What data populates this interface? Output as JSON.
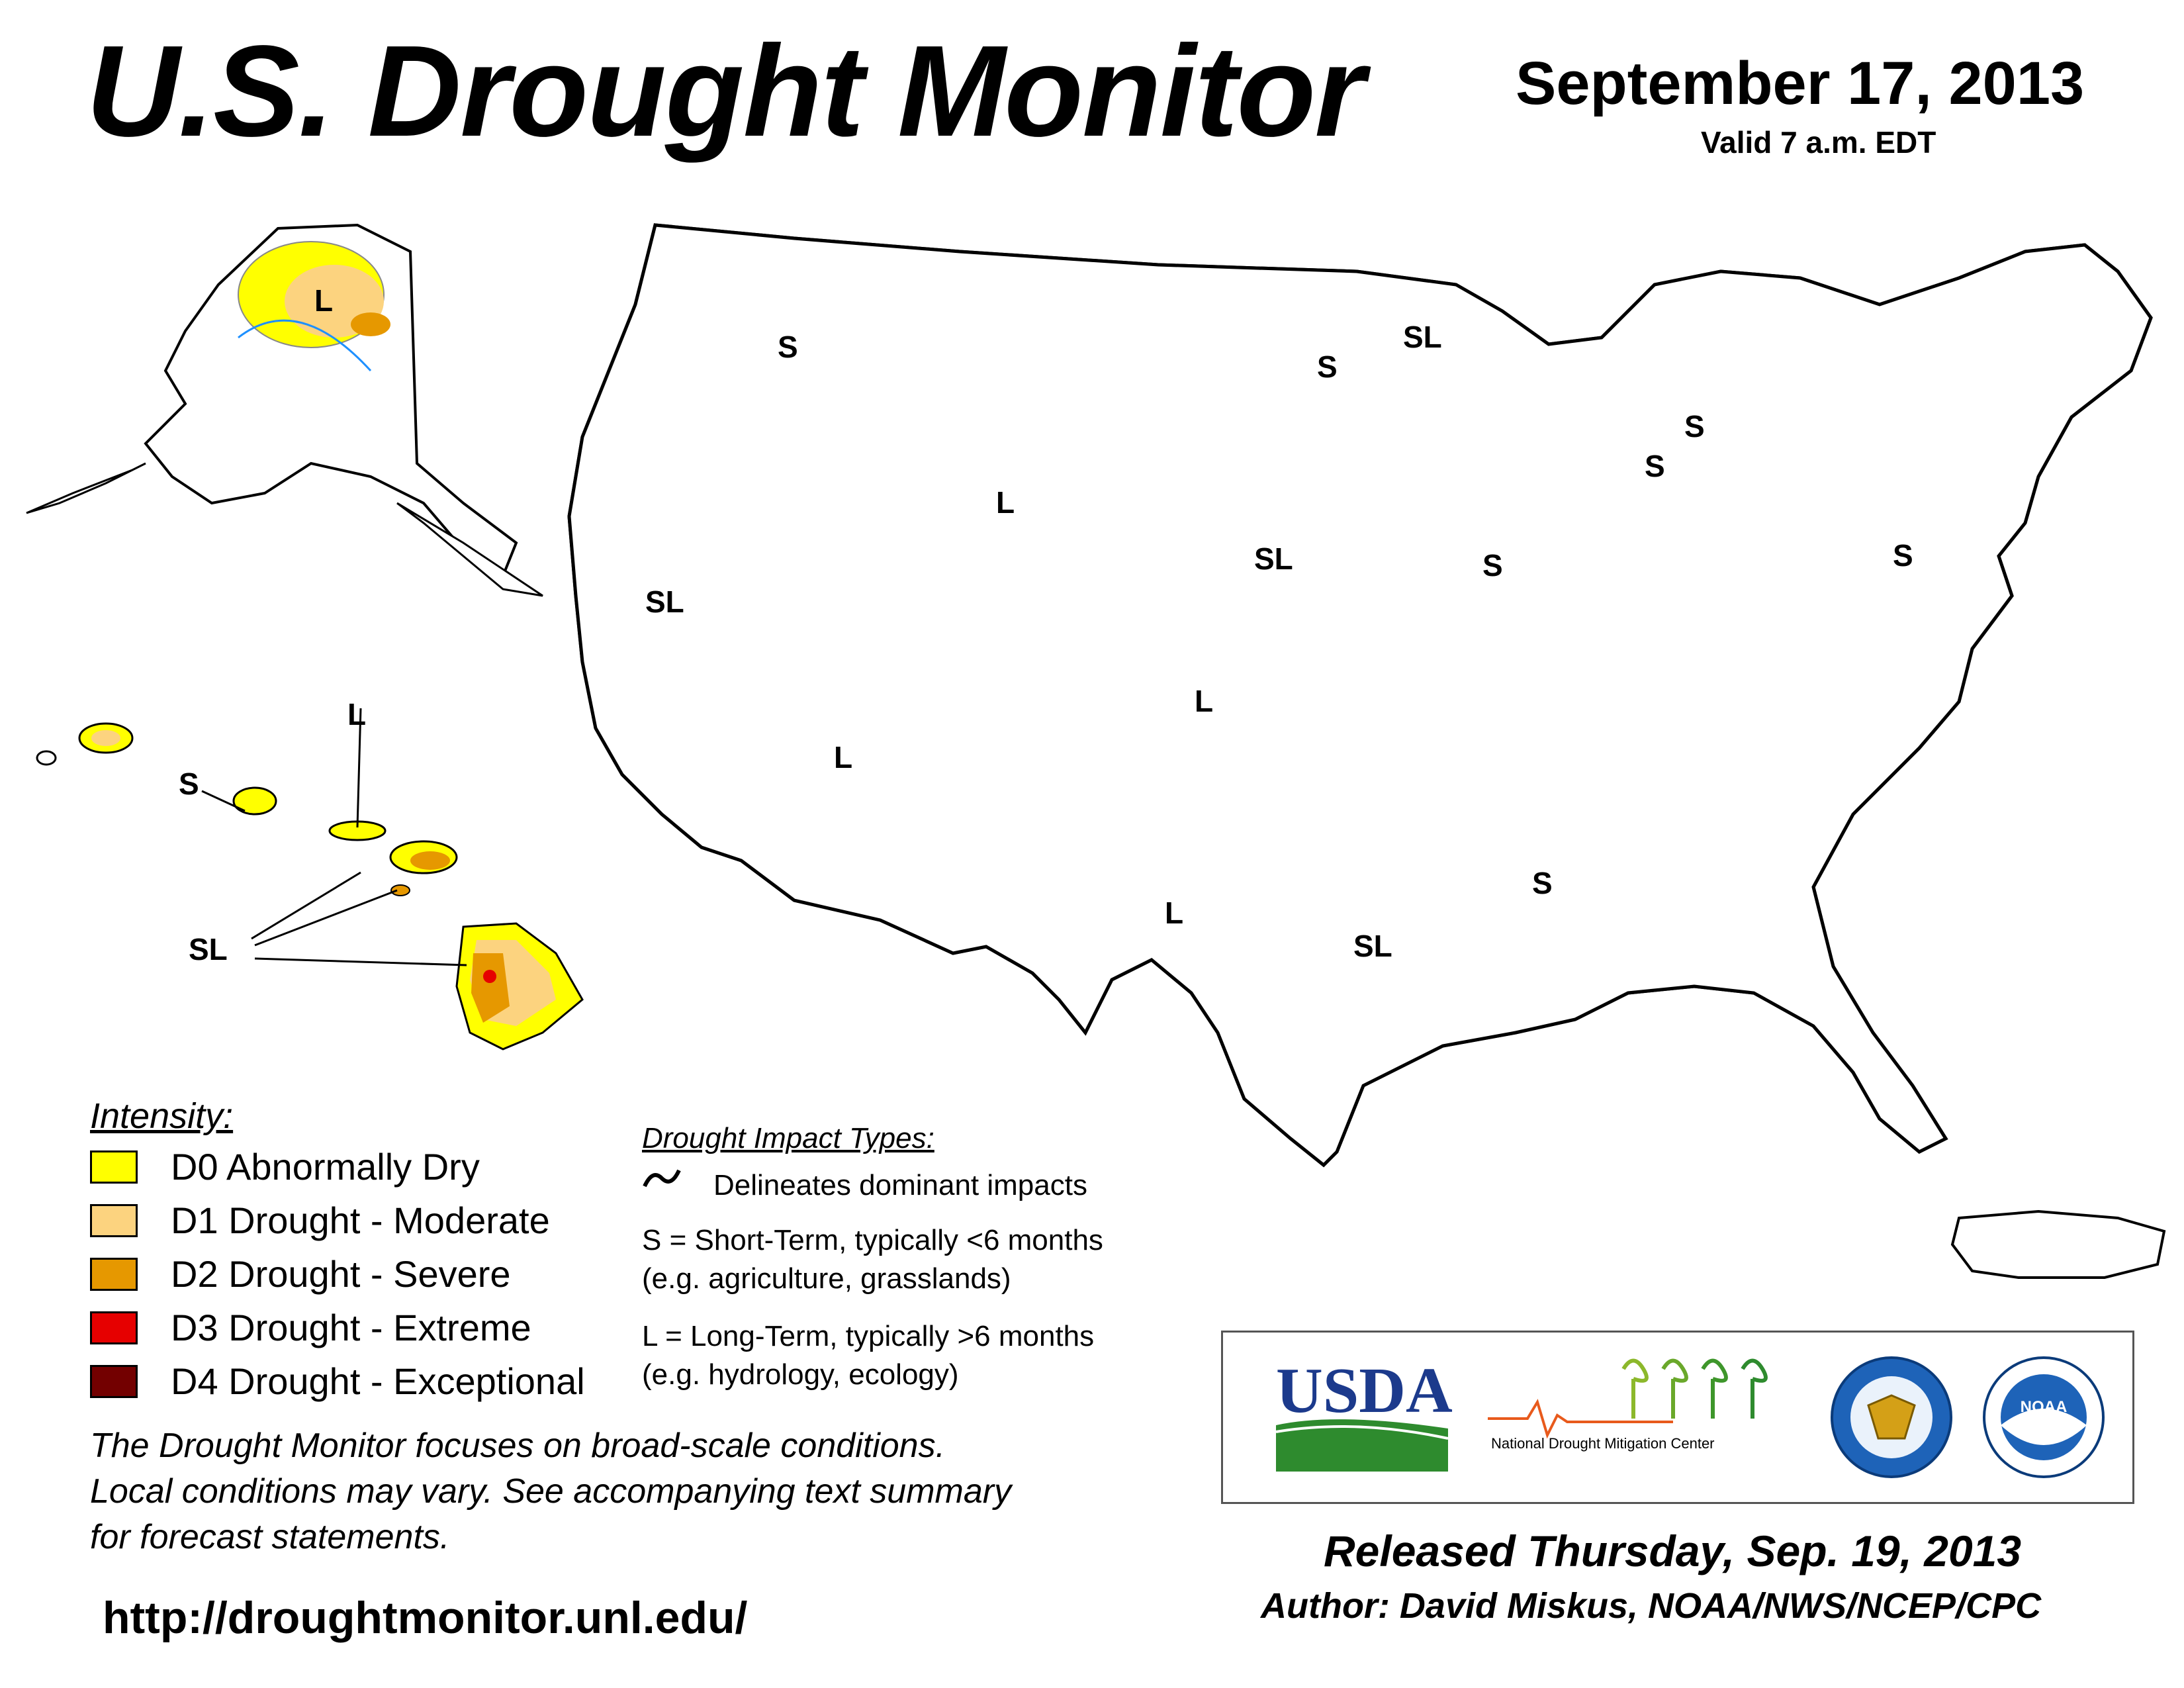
{
  "header": {
    "title": "U.S. Drought Monitor",
    "date": "September 17, 2013",
    "valid": "Valid 7 a.m. EDT"
  },
  "legend": {
    "intensity_title": "Intensity:",
    "items": [
      {
        "label": "D0 Abnormally Dry",
        "color": "#FFFF00"
      },
      {
        "label": "D1 Drought - Moderate",
        "color": "#FCD37F"
      },
      {
        "label": "D2 Drought - Severe",
        "color": "#E69800"
      },
      {
        "label": "D3 Drought - Extreme",
        "color": "#E60000"
      },
      {
        "label": "D4 Drought - Exceptional",
        "color": "#730000"
      }
    ]
  },
  "impacts": {
    "title": "Drought Impact Types:",
    "delineates": "Delineates dominant impacts",
    "short_term": "S = Short-Term, typically <6 months",
    "short_term_eg": "(e.g. agriculture, grasslands)",
    "long_term": "L = Long-Term, typically >6 months",
    "long_term_eg": "(e.g. hydrology, ecology)"
  },
  "disclaimer": {
    "line1": "The Drought Monitor focuses on broad-scale conditions.",
    "line2": "Local conditions may vary. See accompanying text summary",
    "line3": "for forecast statements."
  },
  "url": "http://droughtmonitor.unl.edu/",
  "footer": {
    "released": "Released Thursday, Sep. 19, 2013",
    "author": "Author: David Miskus, NOAA/NWS/NCEP/CPC"
  },
  "logos": {
    "usda": "USDA",
    "ndmc": "National Drought Mitigation Center",
    "doc_seal": "Department of Commerce",
    "noaa": "NOAA"
  },
  "map_labels": {
    "L": "L",
    "S": "S",
    "SL": "SL"
  },
  "colors": {
    "water": "#9CD3F0",
    "river": "#1E90FF",
    "border": "#000000",
    "county": "#A0A0A0"
  }
}
